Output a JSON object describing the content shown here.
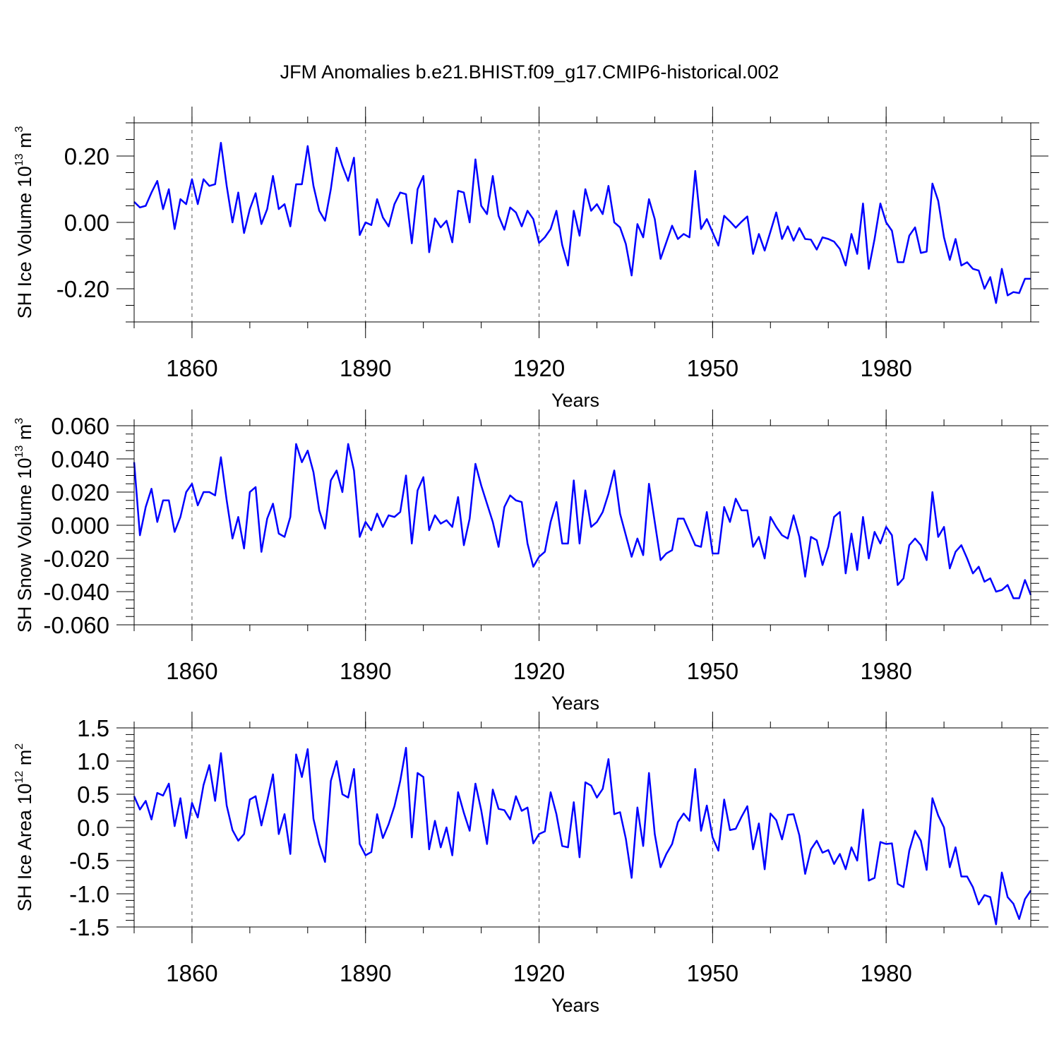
{
  "chart_data": [
    {
      "type": "line",
      "title": "JFM Anomalies b.e21.BHIST.f09_g17.CMIP6-historical.002",
      "xlabel": "Years",
      "ylabel": "SH Ice Volume 10",
      "ylabel_exp": "13",
      "ylabel_unit": " m",
      "ylabel_unit_exp": "3",
      "xlim": [
        1850,
        2005
      ],
      "ylim": [
        -0.3,
        0.3
      ],
      "xticks": [
        1860,
        1890,
        1920,
        1950,
        1980
      ],
      "xtick_labels": [
        "1860",
        "1890",
        "1920",
        "1950",
        "1980"
      ],
      "yticks": [
        -0.2,
        0.0,
        0.2
      ],
      "ytick_labels": [
        "-0.20",
        "0.00",
        "0.20"
      ],
      "y_minor_step": 0.05,
      "x_minor_step": 10,
      "grid": "vertical-dashed-at-major-x",
      "line_color": "#0000ff",
      "x_start": 1850,
      "x_step": 1,
      "values": [
        0.062,
        0.045,
        0.05,
        0.09,
        0.125,
        0.04,
        0.1,
        -0.02,
        0.07,
        0.055,
        0.13,
        0.055,
        0.13,
        0.11,
        0.115,
        0.24,
        0.11,
        0.0,
        0.09,
        -0.032,
        0.04,
        0.088,
        -0.005,
        0.04,
        0.14,
        0.04,
        0.055,
        -0.012,
        0.115,
        0.115,
        0.23,
        0.11,
        0.035,
        0.005,
        0.1,
        0.225,
        0.17,
        0.125,
        0.195,
        -0.038,
        0.0,
        -0.008,
        0.07,
        0.015,
        -0.012,
        0.055,
        0.09,
        0.085,
        -0.063,
        0.1,
        0.14,
        -0.09,
        0.012,
        -0.015,
        0.005,
        -0.06,
        0.095,
        0.09,
        0.0,
        0.19,
        0.05,
        0.025,
        0.14,
        0.02,
        -0.022,
        0.045,
        0.03,
        -0.012,
        0.035,
        0.01,
        -0.062,
        -0.045,
        -0.02,
        0.035,
        -0.068,
        -0.13,
        0.035,
        -0.04,
        0.1,
        0.035,
        0.055,
        0.025,
        0.11,
        0.0,
        -0.015,
        -0.065,
        -0.16,
        -0.005,
        -0.045,
        0.07,
        0.01,
        -0.11,
        -0.06,
        -0.01,
        -0.05,
        -0.035,
        -0.045,
        0.155,
        -0.02,
        0.01,
        -0.03,
        -0.07,
        0.02,
        0.003,
        -0.016,
        0.002,
        0.018,
        -0.095,
        -0.035,
        -0.085,
        -0.028,
        0.03,
        -0.05,
        -0.012,
        -0.055,
        -0.017,
        -0.05,
        -0.052,
        -0.082,
        -0.045,
        -0.05,
        -0.058,
        -0.08,
        -0.13,
        -0.035,
        -0.095,
        0.057,
        -0.14,
        -0.05,
        0.057,
        0.0,
        -0.025,
        -0.12,
        -0.12,
        -0.04,
        -0.015,
        -0.092,
        -0.088,
        0.117,
        0.065,
        -0.045,
        -0.113,
        -0.05,
        -0.13,
        -0.12,
        -0.14,
        -0.145,
        -0.2,
        -0.165,
        -0.243,
        -0.14,
        -0.22,
        -0.21,
        -0.213,
        -0.17,
        -0.17
      ]
    },
    {
      "type": "line",
      "xlabel": "Years",
      "ylabel": "SH Snow Volume 10",
      "ylabel_exp": "13",
      "ylabel_unit": " m",
      "ylabel_unit_exp": "3",
      "xlim": [
        1850,
        2005
      ],
      "ylim": [
        -0.06,
        0.06
      ],
      "xticks": [
        1860,
        1890,
        1920,
        1950,
        1980
      ],
      "xtick_labels": [
        "1860",
        "1890",
        "1920",
        "1950",
        "1980"
      ],
      "yticks": [
        -0.06,
        -0.04,
        -0.02,
        0.0,
        0.02,
        0.04,
        0.06
      ],
      "ytick_labels": [
        "-0.060",
        "-0.040",
        "-0.020",
        "0.000",
        "0.020",
        "0.040",
        "0.060"
      ],
      "y_minor_step": 0.005,
      "x_minor_step": 10,
      "grid": "vertical-dashed-at-major-x",
      "line_color": "#0000ff",
      "x_start": 1850,
      "x_step": 1,
      "values": [
        0.038,
        -0.006,
        0.011,
        0.022,
        0.002,
        0.015,
        0.015,
        -0.004,
        0.005,
        0.02,
        0.025,
        0.012,
        0.02,
        0.02,
        0.018,
        0.041,
        0.015,
        -0.008,
        0.005,
        -0.014,
        0.02,
        0.023,
        -0.016,
        0.004,
        0.013,
        -0.005,
        -0.007,
        0.005,
        0.049,
        0.038,
        0.045,
        0.032,
        0.009,
        -0.002,
        0.027,
        0.033,
        0.02,
        0.049,
        0.033,
        -0.007,
        0.002,
        -0.003,
        0.007,
        -0.001,
        0.006,
        0.005,
        0.008,
        0.03,
        -0.011,
        0.021,
        0.029,
        -0.003,
        0.006,
        0.001,
        0.003,
        -0.001,
        0.017,
        -0.012,
        0.004,
        0.037,
        0.024,
        0.013,
        0.002,
        -0.013,
        0.011,
        0.018,
        0.015,
        0.014,
        -0.011,
        -0.025,
        -0.019,
        -0.016,
        0.002,
        0.014,
        -0.011,
        -0.011,
        0.027,
        -0.011,
        0.021,
        -0.001,
        0.002,
        0.008,
        0.019,
        0.033,
        0.007,
        -0.006,
        -0.019,
        -0.008,
        -0.018,
        0.025,
        0.002,
        -0.021,
        -0.017,
        -0.015,
        0.004,
        0.004,
        -0.004,
        -0.012,
        -0.013,
        0.008,
        -0.017,
        -0.017,
        0.011,
        0.002,
        0.016,
        0.009,
        0.009,
        -0.013,
        -0.007,
        -0.02,
        0.005,
        -0.001,
        -0.006,
        -0.008,
        0.006,
        -0.007,
        -0.031,
        -0.007,
        -0.009,
        -0.024,
        -0.013,
        0.005,
        0.008,
        -0.029,
        -0.005,
        -0.027,
        0.005,
        -0.02,
        -0.004,
        -0.011,
        -0.001,
        -0.006,
        -0.036,
        -0.032,
        -0.012,
        -0.008,
        -0.012,
        -0.021,
        0.02,
        -0.007,
        -0.001,
        -0.026,
        -0.016,
        -0.012,
        -0.02,
        -0.029,
        -0.025,
        -0.034,
        -0.032,
        -0.04,
        -0.039,
        -0.036,
        -0.044,
        -0.044,
        -0.033,
        -0.042
      ]
    },
    {
      "type": "line",
      "xlabel": "Years",
      "ylabel": "SH Ice Area 10",
      "ylabel_exp": "12",
      "ylabel_unit": " m",
      "ylabel_unit_exp": "2",
      "xlim": [
        1850,
        2005
      ],
      "ylim": [
        -1.5,
        1.5
      ],
      "xticks": [
        1860,
        1890,
        1920,
        1950,
        1980
      ],
      "xtick_labels": [
        "1860",
        "1890",
        "1920",
        "1950",
        "1980"
      ],
      "yticks": [
        -1.5,
        -1.0,
        -0.5,
        0.0,
        0.5,
        1.0,
        1.5
      ],
      "ytick_labels": [
        "-1.5",
        "-1.0",
        "-0.5",
        "0.0",
        "0.5",
        "1.0",
        "1.5"
      ],
      "y_minor_step": 0.1,
      "x_minor_step": 10,
      "grid": "vertical-dashed-at-major-x",
      "line_color": "#0000ff",
      "x_start": 1850,
      "x_step": 1,
      "values": [
        0.47,
        0.27,
        0.4,
        0.12,
        0.52,
        0.48,
        0.66,
        0.02,
        0.44,
        -0.16,
        0.37,
        0.15,
        0.64,
        0.94,
        0.4,
        1.12,
        0.33,
        -0.04,
        -0.2,
        -0.1,
        0.42,
        0.47,
        0.03,
        0.4,
        0.8,
        -0.1,
        0.2,
        -0.4,
        1.1,
        0.76,
        1.18,
        0.13,
        -0.25,
        -0.52,
        0.7,
        1.0,
        0.5,
        0.45,
        0.88,
        -0.25,
        -0.42,
        -0.37,
        0.2,
        -0.16,
        0.05,
        0.32,
        0.7,
        1.2,
        -0.15,
        0.82,
        0.76,
        -0.33,
        0.1,
        -0.3,
        0.0,
        -0.42,
        0.53,
        0.22,
        -0.05,
        0.66,
        0.26,
        -0.25,
        0.57,
        0.28,
        0.26,
        0.12,
        0.47,
        0.25,
        0.3,
        -0.24,
        -0.1,
        -0.06,
        0.53,
        0.2,
        -0.28,
        -0.3,
        0.38,
        -0.45,
        0.68,
        0.63,
        0.45,
        0.58,
        1.03,
        0.2,
        0.23,
        -0.17,
        -0.76,
        0.3,
        -0.28,
        0.82,
        -0.1,
        -0.6,
        -0.4,
        -0.25,
        0.08,
        0.21,
        0.1,
        0.88,
        -0.05,
        0.33,
        -0.15,
        -0.35,
        0.42,
        -0.04,
        -0.02,
        0.16,
        0.32,
        -0.33,
        0.06,
        -0.63,
        0.21,
        0.11,
        -0.18,
        0.19,
        0.2,
        -0.12,
        -0.7,
        -0.33,
        -0.2,
        -0.38,
        -0.34,
        -0.55,
        -0.4,
        -0.63,
        -0.3,
        -0.5,
        0.27,
        -0.8,
        -0.76,
        -0.22,
        -0.25,
        -0.24,
        -0.85,
        -0.9,
        -0.35,
        -0.05,
        -0.2,
        -0.64,
        0.44,
        0.18,
        0.0,
        -0.6,
        -0.3,
        -0.74,
        -0.74,
        -0.9,
        -1.16,
        -1.02,
        -1.05,
        -1.46,
        -0.68,
        -1.05,
        -1.15,
        -1.38,
        -1.08,
        -0.95
      ]
    }
  ]
}
